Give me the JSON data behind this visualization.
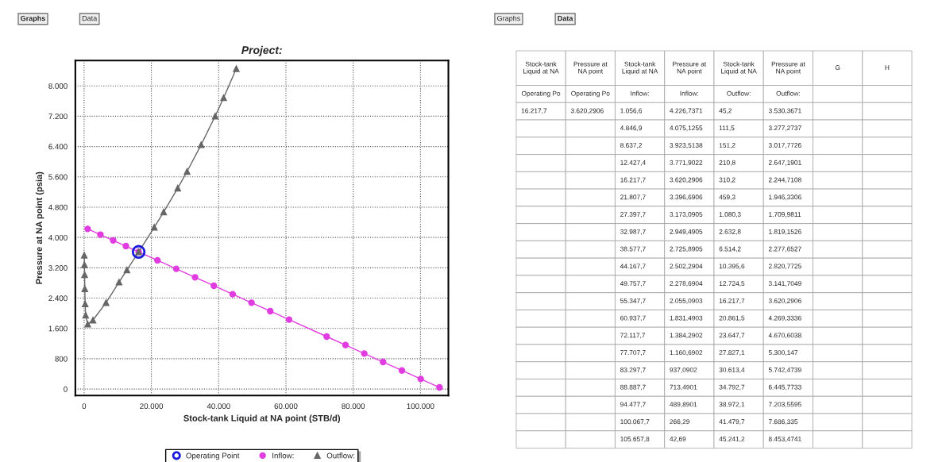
{
  "chart_data": [
    {
      "type": "line",
      "title": "Project:",
      "xlabel": "Stock-tank Liquid at NA point (STB/d)",
      "ylabel": "Pressure at NA point (psia)",
      "xlim": [
        -2600,
        108300
      ],
      "ylim": [
        -170,
        8670
      ],
      "xticks": [
        {
          "value": 0,
          "label": "0"
        },
        {
          "value": 20000,
          "label": "20.000"
        },
        {
          "value": 40000,
          "label": "40.000"
        },
        {
          "value": 60000,
          "label": "60.000"
        },
        {
          "value": 80000,
          "label": "80.000"
        },
        {
          "value": 100000,
          "label": "100.000"
        }
      ],
      "yticks": [
        {
          "value": 0,
          "label": "0"
        },
        {
          "value": 800,
          "label": "800"
        },
        {
          "value": 1600,
          "label": "1.600"
        },
        {
          "value": 2400,
          "label": "2.400"
        },
        {
          "value": 3200,
          "label": "3.200"
        },
        {
          "value": 4000,
          "label": "4.000"
        },
        {
          "value": 4800,
          "label": "4.800"
        },
        {
          "value": 5600,
          "label": "5.600"
        },
        {
          "value": 6400,
          "label": "6.400"
        },
        {
          "value": 7200,
          "label": "7.200"
        },
        {
          "value": 8000,
          "label": "8.000"
        }
      ],
      "grid": true,
      "legend": "bottom",
      "annotations": [
        "Graphs",
        "Data"
      ],
      "series": [
        {
          "name": "Operating Point",
          "type": "scatter",
          "marker": "circle",
          "color": "#1a1adc",
          "x": [
            16217.7
          ],
          "values": [
            3620.2906
          ]
        },
        {
          "name": "Inflow:",
          "marker": "circle",
          "color": "#e03ce0",
          "x": [
            1056.6,
            4846.9,
            8637.2,
            12427.4,
            16217.7,
            21807.7,
            27397.7,
            32987.7,
            38577.7,
            44167.7,
            49757.7,
            55347.7,
            60937.7,
            72117.7,
            77707.7,
            83297.7,
            88887.7,
            94477.7,
            100067.7,
            105657.8
          ],
          "values": [
            4226.7371,
            4075.1255,
            3923.5138,
            3771.9022,
            3620.2906,
            3396.6906,
            3173.0905,
            2949.4905,
            2725.8905,
            2502.2904,
            2278.6904,
            2055.0903,
            1831.4903,
            1384.2902,
            1160.6902,
            937.0902,
            713.4901,
            489.8901,
            266.29,
            42.69
          ]
        },
        {
          "name": "Outflow:",
          "marker": "triangle",
          "color": "#666666",
          "x": [
            45.2,
            111.5,
            151.2,
            210.8,
            310.2,
            459.3,
            1080.3,
            2632.8,
            6514.2,
            10395.6,
            12724.5,
            16217.7,
            20861.5,
            23647.7,
            27827.1,
            30613.4,
            34792.7,
            38972.1,
            41479.7,
            45241.2
          ],
          "values": [
            3530.3671,
            3277.2737,
            3017.7726,
            2647.1901,
            2244.7108,
            1946.3306,
            1709.9811,
            1819.1526,
            2277.6527,
            2820.7725,
            3141.7049,
            3620.2906,
            4269.3336,
            4670.6038,
            5300.147,
            5742.4739,
            6445.7733,
            7203.5595,
            7686.335,
            8453.4741
          ]
        }
      ]
    },
    {
      "type": "other",
      "annotations": [
        "Graphs",
        "Data"
      ],
      "categories": [
        "Stock-tank\nLiquid at NA",
        "Pressure at\nNA point",
        "Stock-tank\nLiquid at NA",
        "Pressure at\nNA point",
        "Stock-tank\nLiquid at NA",
        "Pressure at\nNA point",
        "G",
        "H"
      ],
      "cell_labels": [
        [
          "Operating Po",
          "Operating Po",
          "Inflow:",
          "Inflow:",
          "Outflow:",
          "Outflow:",
          null,
          null
        ],
        [
          "16.217,7",
          "3.620,2906",
          "1.056,6",
          "4.226,7371",
          "45,2",
          "3.530,3671",
          null,
          null
        ],
        [
          null,
          null,
          "4.846,9",
          "4.075,1255",
          "111,5",
          "3.277,2737",
          null,
          null
        ],
        [
          null,
          null,
          "8.637,2",
          "3.923,5138",
          "151,2",
          "3.017,7726",
          null,
          null
        ],
        [
          null,
          null,
          "12.427,4",
          "3.771,9022",
          "210,8",
          "2.647,1901",
          null,
          null
        ],
        [
          null,
          null,
          "16.217,7",
          "3.620,2906",
          "310,2",
          "2.244,7108",
          null,
          null
        ],
        [
          null,
          null,
          "21.807,7",
          "3.396,6906",
          "459,3",
          "1.946,3306",
          null,
          null
        ],
        [
          null,
          null,
          "27.397,7",
          "3.173,0905",
          "1.080,3",
          "1.709,9811",
          null,
          null
        ],
        [
          null,
          null,
          "32.987,7",
          "2.949,4905",
          "2.632,8",
          "1.819,1526",
          null,
          null
        ],
        [
          null,
          null,
          "38.577,7",
          "2.725,8905",
          "6.514,2",
          "2.277,6527",
          null,
          null
        ],
        [
          null,
          null,
          "44.167,7",
          "2.502,2904",
          "10.395,6",
          "2.820,7725",
          null,
          null
        ],
        [
          null,
          null,
          "49.757,7",
          "2.278,6904",
          "12.724,5",
          "3.141,7049",
          null,
          null
        ],
        [
          null,
          null,
          "55.347,7",
          "2.055,0903",
          "16.217,7",
          "3.620,2906",
          null,
          null
        ],
        [
          null,
          null,
          "60.937,7",
          "1.831,4903",
          "20.861,5",
          "4.269,3336",
          null,
          null
        ],
        [
          null,
          null,
          "72.117,7",
          "1.384,2902",
          "23.647,7",
          "4.670,6038",
          null,
          null
        ],
        [
          null,
          null,
          "77.707,7",
          "1.160,6902",
          "27.827,1",
          "5.300,147",
          null,
          null
        ],
        [
          null,
          null,
          "83.297,7",
          "937,0902",
          "30.613,4",
          "5.742,4739",
          null,
          null
        ],
        [
          null,
          null,
          "88.887,7",
          "713,4901",
          "34.792,7",
          "6.445,7733",
          null,
          null
        ],
        [
          null,
          null,
          "94.477,7",
          "489,8901",
          "38.972,1",
          "7.203,5595",
          null,
          null
        ],
        [
          null,
          null,
          "100.067,7",
          "266,29",
          "41.479,7",
          "7.686,335",
          null,
          null
        ],
        [
          null,
          null,
          "105.657,8",
          "42,69",
          "45.241,2",
          "8.453,4741",
          null,
          null
        ]
      ]
    }
  ]
}
